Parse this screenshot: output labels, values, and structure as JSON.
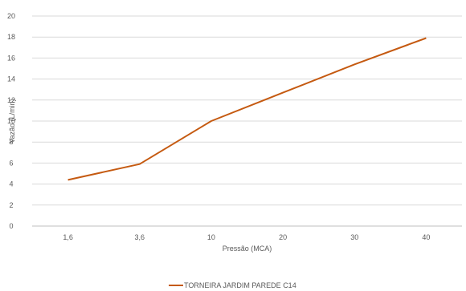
{
  "chart_data": {
    "type": "line",
    "categories": [
      "1,6",
      "3,6",
      "10",
      "20",
      "30",
      "40"
    ],
    "series": [
      {
        "name": "TORNEIRA JARDIM PAREDE C14",
        "values": [
          4.4,
          5.9,
          10.0,
          12.7,
          15.4,
          17.9
        ],
        "color": "#c55a11"
      }
    ],
    "xlabel": "Pressão (MCA)",
    "ylabel": "Vazão (L/min)",
    "ylim": [
      0,
      20
    ],
    "yticks": [
      "0",
      "2",
      "4",
      "6",
      "8",
      "10",
      "12",
      "14",
      "16",
      "18",
      "20"
    ],
    "grid": true,
    "legend_position": "bottom"
  }
}
